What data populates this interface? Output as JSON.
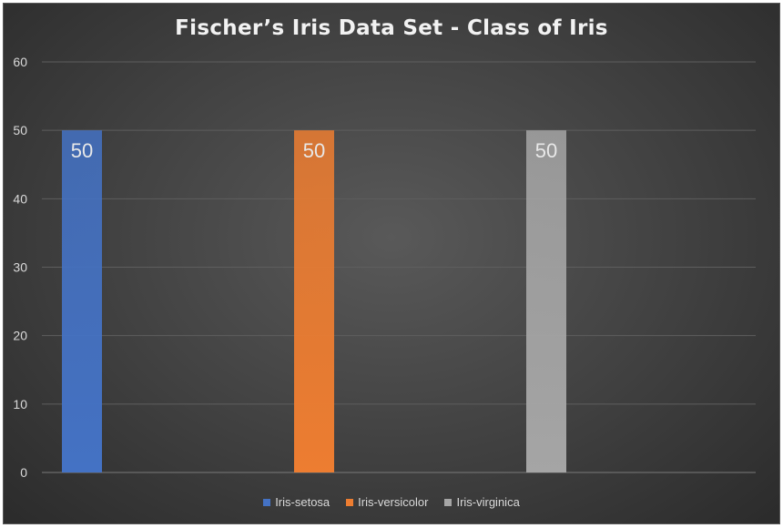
{
  "chart_data": {
    "type": "bar",
    "title": "Fischer’s Iris Data Set - Class of Iris",
    "xlabel": "",
    "ylabel": "",
    "ylim": [
      0,
      60
    ],
    "yticks": [
      0,
      10,
      20,
      30,
      40,
      50,
      60
    ],
    "grid": true,
    "legend_position": "bottom",
    "series": [
      {
        "name": "Iris-setosa",
        "values": [
          50
        ],
        "color": "#4472c4"
      },
      {
        "name": "Iris-versicolor",
        "values": [
          50
        ],
        "color": "#ed7d31"
      },
      {
        "name": "Iris-virginica",
        "values": [
          50
        ],
        "color": "#a5a5a5"
      }
    ],
    "data_labels": [
      "50",
      "50",
      "50"
    ]
  }
}
